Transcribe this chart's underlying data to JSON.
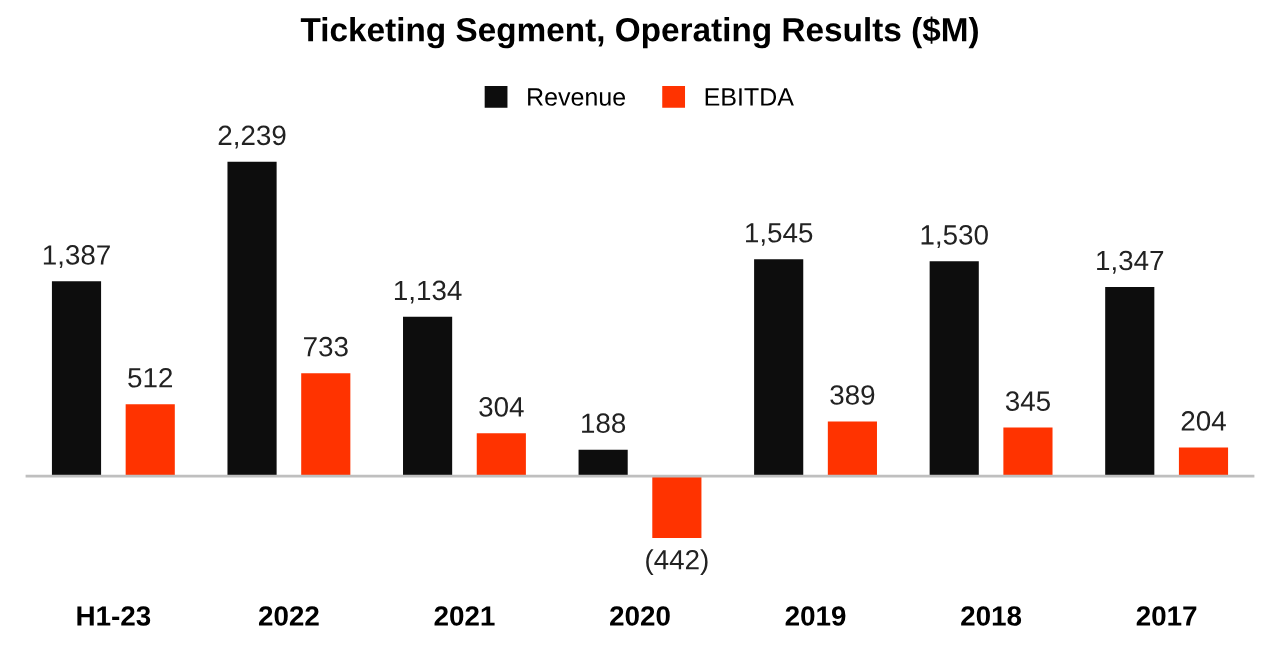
{
  "chart_data": {
    "type": "bar",
    "title": "Ticketing Segment, Operating Results ($M)",
    "categories": [
      "H1-23",
      "2022",
      "2021",
      "2020",
      "2019",
      "2018",
      "2017"
    ],
    "series": [
      {
        "name": "Revenue",
        "color": "#0d0d0d",
        "values": [
          1387,
          2239,
          1134,
          188,
          1545,
          1530,
          1347
        ],
        "value_labels": [
          "1,387",
          "2,239",
          "1,134",
          "188",
          "1,545",
          "1,530",
          "1,347"
        ]
      },
      {
        "name": "EBITDA",
        "color": "#ff3300",
        "values": [
          512,
          733,
          304,
          -442,
          389,
          345,
          204
        ],
        "value_labels": [
          "512",
          "733",
          "304",
          "(442)",
          "389",
          "345",
          "204"
        ]
      }
    ],
    "legend": "top",
    "grid": false
  }
}
